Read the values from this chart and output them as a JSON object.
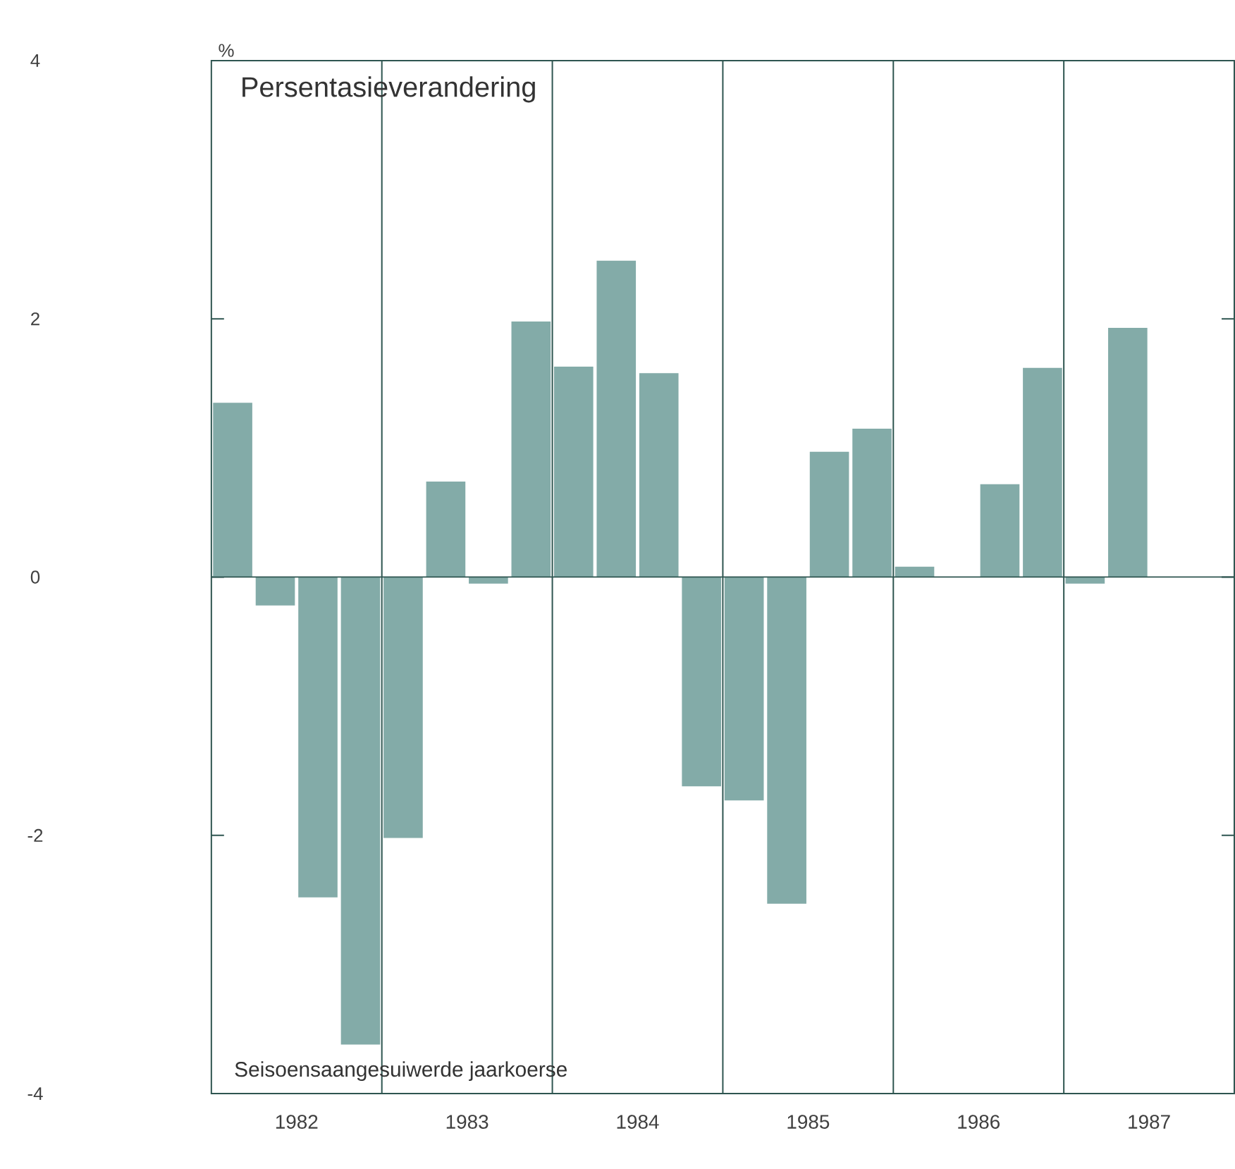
{
  "chart_data": {
    "type": "bar",
    "title": "Persentasieverandering",
    "ylabel": "%",
    "annotations": [
      "Seisoensaangesuiwerde jaarkoerse"
    ],
    "x": [
      1982.125,
      1982.375,
      1982.625,
      1982.875,
      1983.125,
      1983.375,
      1983.625,
      1983.875,
      1984.125,
      1984.375,
      1984.625,
      1984.875,
      1985.125,
      1985.375,
      1985.625,
      1985.875,
      1986.125,
      1986.375,
      1986.625,
      1986.875,
      1987.125,
      1987.375
    ],
    "values": [
      1.35,
      -0.22,
      -2.48,
      -3.62,
      -2.02,
      0.74,
      -0.05,
      1.98,
      1.63,
      2.45,
      1.58,
      -1.62,
      -1.73,
      -2.53,
      0.97,
      1.15,
      0.08,
      0.0,
      0.72,
      1.62,
      -0.05,
      1.93
    ],
    "color": "#83aba8",
    "xlim": [
      1982,
      1988
    ],
    "xticks": [
      {
        "value": 1982.5,
        "label": "1982"
      },
      {
        "value": 1983.5,
        "label": "1983"
      },
      {
        "value": 1984.5,
        "label": "1984"
      },
      {
        "value": 1985.5,
        "label": "1985"
      },
      {
        "value": 1986.5,
        "label": "1986"
      },
      {
        "value": 1987.5,
        "label": "1987"
      }
    ],
    "ylim": [
      -4,
      4
    ],
    "yticks": [
      -4,
      -2,
      0,
      2,
      4
    ],
    "ref_lines": [
      {
        "axis": "y",
        "value": 0,
        "color": "#2e5550"
      },
      {
        "axis": "x",
        "value": 1983,
        "color": "#2e5550"
      },
      {
        "axis": "x",
        "value": 1984,
        "color": "#2e5550"
      },
      {
        "axis": "x",
        "value": 1985,
        "color": "#2e5550"
      },
      {
        "axis": "x",
        "value": 1986,
        "color": "#2e5550"
      },
      {
        "axis": "x",
        "value": 1987,
        "color": "#2e5550"
      }
    ],
    "grid": false
  }
}
